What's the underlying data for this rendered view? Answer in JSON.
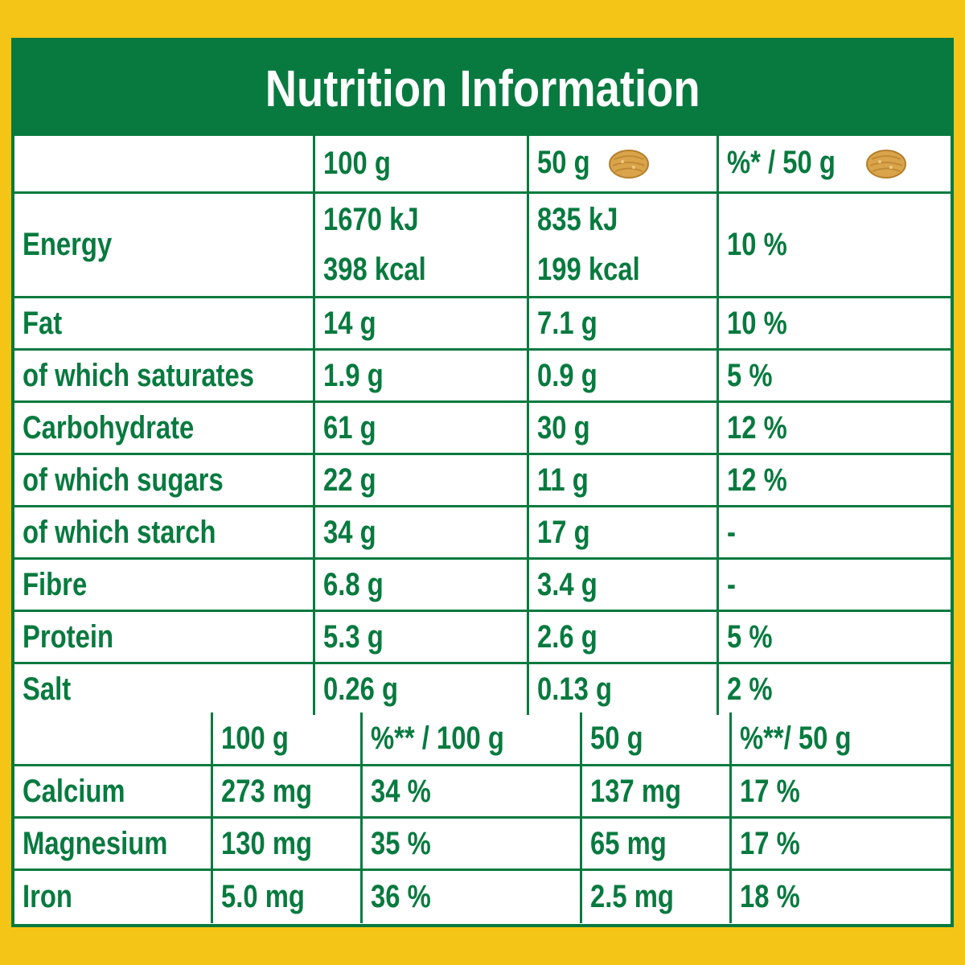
{
  "title": "Nutrition Information",
  "colors": {
    "green": "#087a3f",
    "yellow": "#f4c516",
    "cereal": "#d9a44a"
  },
  "main_table": {
    "headers": [
      "",
      "100 g",
      "50 g",
      "%* / 50 g"
    ],
    "header_icons": [
      "",
      "",
      "cereal-piece-icon",
      "cereal-piece-icon"
    ],
    "rows": [
      {
        "label": "Energy",
        "per100": [
          "1670 kJ",
          "398 kcal"
        ],
        "per50": [
          "835 kJ",
          "199 kcal"
        ],
        "pct": "10 %"
      },
      {
        "label": "Fat",
        "per100": "14 g",
        "per50": "7.1 g",
        "pct": "10 %"
      },
      {
        "label": "of which saturates",
        "per100": "1.9 g",
        "per50": "0.9 g",
        "pct": "5 %"
      },
      {
        "label": "Carbohydrate",
        "per100": "61 g",
        "per50": "30 g",
        "pct": "12 %"
      },
      {
        "label": "of which sugars",
        "per100": "22 g",
        "per50": "11 g",
        "pct": "12 %"
      },
      {
        "label": "of which starch",
        "per100": "34 g",
        "per50": "17 g",
        "pct": "-"
      },
      {
        "label": "Fibre",
        "per100": "6.8 g",
        "per50": "3.4 g",
        "pct": "-"
      },
      {
        "label": "Protein",
        "per100": "5.3 g",
        "per50": "2.6 g",
        "pct": "5 %"
      },
      {
        "label": "Salt",
        "per100": "0.26 g",
        "per50": "0.13 g",
        "pct": "2 %"
      }
    ]
  },
  "minerals_table": {
    "headers": [
      "",
      "100 g",
      "%** / 100 g",
      "50 g",
      "%**/ 50 g"
    ],
    "rows": [
      {
        "label": "Calcium",
        "per100": "273 mg",
        "pct100": "34 %",
        "per50": "137 mg",
        "pct50": "17 %"
      },
      {
        "label": "Magnesium",
        "per100": "130 mg",
        "pct100": "35 %",
        "per50": "65 mg",
        "pct50": "17 %"
      },
      {
        "label": "Iron",
        "per100": "5.0 mg",
        "pct100": "36 %",
        "per50": "2.5 mg",
        "pct50": "18 %"
      }
    ]
  }
}
